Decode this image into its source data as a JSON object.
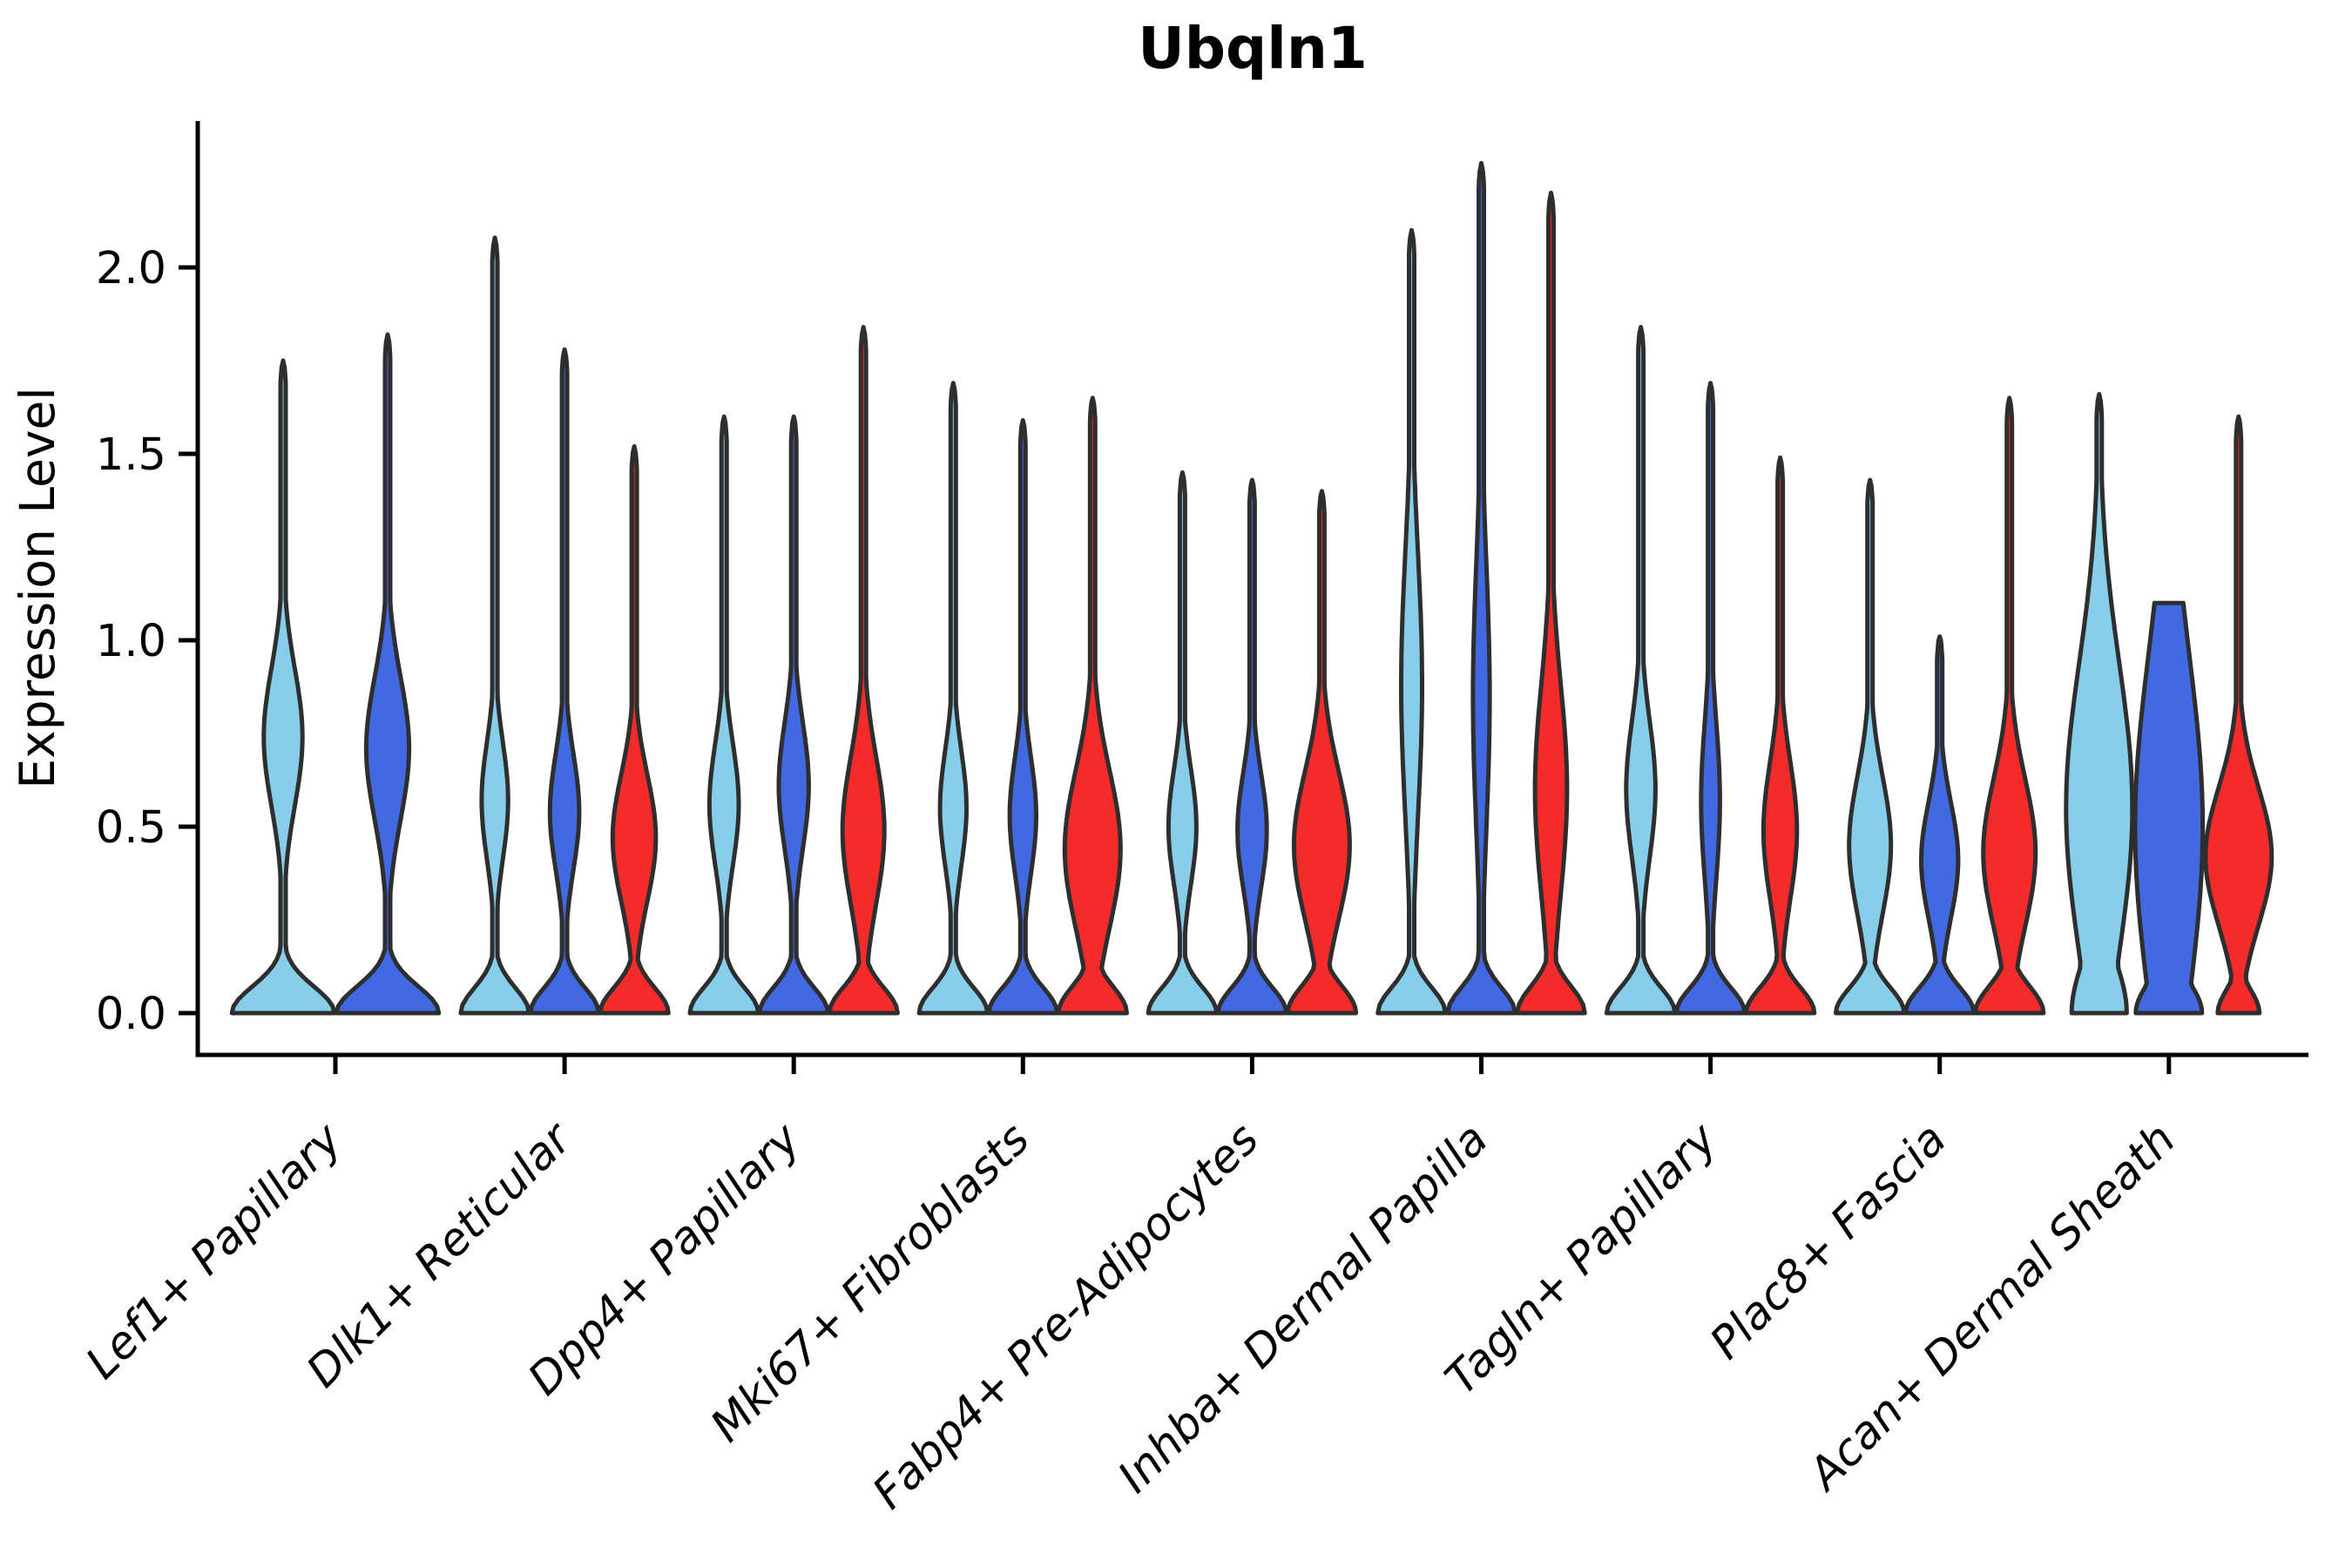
{
  "chart_data": {
    "type": "violin",
    "title": "Ubqln1",
    "ylabel": "Expression Level",
    "xlabel": "",
    "ylim": [
      0,
      2.39
    ],
    "grid": false,
    "legend": "none",
    "yticks": [
      {
        "value": 0.0,
        "label": "0.0"
      },
      {
        "value": 0.5,
        "label": "0.5"
      },
      {
        "value": 1.0,
        "label": "1.0"
      },
      {
        "value": 1.5,
        "label": "1.5"
      },
      {
        "value": 2.0,
        "label": "2.0"
      }
    ],
    "categories": [
      "Lef1+ Papillary",
      "Dlk1+ Reticular",
      "Dpp4+ Papillary",
      "Mki67+ Fibroblasts",
      "Fabp4+ Pre-Adipocytes",
      "Inhba+ Dermal Papilla",
      "Tagln+ Papillary",
      "Plac8+ Fascia",
      "Acan+ Dermal Sheath"
    ],
    "palette": {
      "light_blue": "#87CEEB",
      "dark_blue": "#4169E1",
      "red": "#F32B2B",
      "edge": "#2E2E2E",
      "axis": "#000000"
    },
    "groups": [
      {
        "label": "Lef1+ Papillary",
        "violins": [
          {
            "color": "light_blue",
            "max_expression": 1.75,
            "bulge_a": 0.37,
            "bulge_c": 0.74,
            "bulge_s": 0.26,
            "base_frac": 0.98,
            "base_sigma": 0.1,
            "flat_top": false
          },
          {
            "color": "dark_blue",
            "max_expression": 1.82,
            "bulge_a": 0.41,
            "bulge_c": 0.71,
            "bulge_s": 0.27,
            "base_frac": 0.98,
            "base_sigma": 0.1,
            "flat_top": false
          }
        ]
      },
      {
        "label": "Dlk1+ Reticular",
        "violins": [
          {
            "color": "light_blue",
            "max_expression": 2.08,
            "bulge_a": 0.38,
            "bulge_c": 0.57,
            "bulge_s": 0.22,
            "base_frac": 0.98,
            "base_sigma": 0.095,
            "flat_top": false
          },
          {
            "color": "dark_blue",
            "max_expression": 1.78,
            "bulge_a": 0.42,
            "bulge_c": 0.54,
            "bulge_s": 0.22,
            "base_frac": 0.98,
            "base_sigma": 0.095,
            "flat_top": false
          },
          {
            "color": "red",
            "max_expression": 1.52,
            "bulge_a": 0.62,
            "bulge_c": 0.47,
            "bulge_s": 0.24,
            "base_frac": 0.98,
            "base_sigma": 0.095,
            "flat_top": false
          }
        ]
      },
      {
        "label": "Dpp4+ Papillary",
        "violins": [
          {
            "color": "light_blue",
            "max_expression": 1.6,
            "bulge_a": 0.42,
            "bulge_c": 0.56,
            "bulge_s": 0.23,
            "base_frac": 0.98,
            "base_sigma": 0.095,
            "flat_top": false
          },
          {
            "color": "dark_blue",
            "max_expression": 1.6,
            "bulge_a": 0.43,
            "bulge_c": 0.61,
            "bulge_s": 0.24,
            "base_frac": 0.98,
            "base_sigma": 0.095,
            "flat_top": false
          },
          {
            "color": "red",
            "max_expression": 1.84,
            "bulge_a": 0.6,
            "bulge_c": 0.49,
            "bulge_s": 0.28,
            "base_frac": 0.98,
            "base_sigma": 0.095,
            "flat_top": false
          }
        ]
      },
      {
        "label": "Mki67+ Fibroblasts",
        "violins": [
          {
            "color": "light_blue",
            "max_expression": 1.69,
            "bulge_a": 0.38,
            "bulge_c": 0.55,
            "bulge_s": 0.22,
            "base_frac": 0.98,
            "base_sigma": 0.095,
            "flat_top": false
          },
          {
            "color": "dark_blue",
            "max_expression": 1.59,
            "bulge_a": 0.38,
            "bulge_c": 0.53,
            "bulge_s": 0.22,
            "base_frac": 0.98,
            "base_sigma": 0.095,
            "flat_top": false
          },
          {
            "color": "red",
            "max_expression": 1.65,
            "bulge_a": 0.8,
            "bulge_c": 0.44,
            "bulge_s": 0.3,
            "base_frac": 0.98,
            "base_sigma": 0.1,
            "flat_top": false
          }
        ]
      },
      {
        "label": "Fabp4+ Pre-Adipocytes",
        "violins": [
          {
            "color": "light_blue",
            "max_expression": 1.45,
            "bulge_a": 0.4,
            "bulge_c": 0.5,
            "bulge_s": 0.22,
            "base_frac": 0.98,
            "base_sigma": 0.095,
            "flat_top": false
          },
          {
            "color": "dark_blue",
            "max_expression": 1.43,
            "bulge_a": 0.42,
            "bulge_c": 0.49,
            "bulge_s": 0.22,
            "base_frac": 0.98,
            "base_sigma": 0.095,
            "flat_top": false
          },
          {
            "color": "red",
            "max_expression": 1.4,
            "bulge_a": 0.8,
            "bulge_c": 0.45,
            "bulge_s": 0.28,
            "base_frac": 0.98,
            "base_sigma": 0.1,
            "flat_top": false
          }
        ]
      },
      {
        "label": "Inhba+ Dermal Papilla",
        "violins": [
          {
            "color": "light_blue",
            "max_expression": 2.1,
            "bulge_a": 0.3,
            "bulge_c": 0.88,
            "bulge_s": 0.5,
            "base_frac": 0.97,
            "base_sigma": 0.095,
            "flat_top": false
          },
          {
            "color": "dark_blue",
            "max_expression": 2.28,
            "bulge_a": 0.24,
            "bulge_c": 0.85,
            "bulge_s": 0.5,
            "base_frac": 0.97,
            "base_sigma": 0.095,
            "flat_top": false
          },
          {
            "color": "red",
            "max_expression": 2.2,
            "bulge_a": 0.46,
            "bulge_c": 0.6,
            "bulge_s": 0.4,
            "base_frac": 0.97,
            "base_sigma": 0.1,
            "flat_top": false
          }
        ]
      },
      {
        "label": "Tagln+ Papillary",
        "violins": [
          {
            "color": "light_blue",
            "max_expression": 1.84,
            "bulge_a": 0.42,
            "bulge_c": 0.6,
            "bulge_s": 0.26,
            "base_frac": 0.98,
            "base_sigma": 0.095,
            "flat_top": false
          },
          {
            "color": "dark_blue",
            "max_expression": 1.69,
            "bulge_a": 0.27,
            "bulge_c": 0.57,
            "bulge_s": 0.3,
            "base_frac": 0.98,
            "base_sigma": 0.095,
            "flat_top": false
          },
          {
            "color": "red",
            "max_expression": 1.49,
            "bulge_a": 0.48,
            "bulge_c": 0.49,
            "bulge_s": 0.26,
            "base_frac": 0.98,
            "base_sigma": 0.095,
            "flat_top": false
          }
        ]
      },
      {
        "label": "Plac8+ Fascia",
        "violins": [
          {
            "color": "light_blue",
            "max_expression": 1.43,
            "bulge_a": 0.6,
            "bulge_c": 0.45,
            "bulge_s": 0.26,
            "base_frac": 0.98,
            "base_sigma": 0.095,
            "flat_top": false
          },
          {
            "color": "dark_blue",
            "max_expression": 1.01,
            "bulge_a": 0.53,
            "bulge_c": 0.41,
            "bulge_s": 0.22,
            "base_frac": 0.98,
            "base_sigma": 0.095,
            "flat_top": false
          },
          {
            "color": "red",
            "max_expression": 1.65,
            "bulge_a": 0.75,
            "bulge_c": 0.43,
            "bulge_s": 0.28,
            "base_frac": 0.98,
            "base_sigma": 0.1,
            "flat_top": false
          }
        ]
      },
      {
        "label": "Acan+ Dermal Sheath",
        "violins": [
          {
            "color": "light_blue",
            "max_expression": 1.66,
            "bulge_a": 0.95,
            "bulge_c": 0.55,
            "bulge_s": 0.55,
            "base_frac": 0.79,
            "base_sigma": 0.2,
            "flat_top": false
          },
          {
            "color": "dark_blue",
            "max_expression": 1.1,
            "bulge_a": 0.97,
            "bulge_c": 0.5,
            "bulge_s": 0.65,
            "base_frac": 0.95,
            "base_sigma": 0.12,
            "flat_top": true
          },
          {
            "color": "red",
            "max_expression": 1.6,
            "bulge_a": 0.95,
            "bulge_c": 0.42,
            "bulge_s": 0.26,
            "base_frac": 0.6,
            "base_sigma": 0.085,
            "flat_top": false
          }
        ]
      }
    ]
  }
}
